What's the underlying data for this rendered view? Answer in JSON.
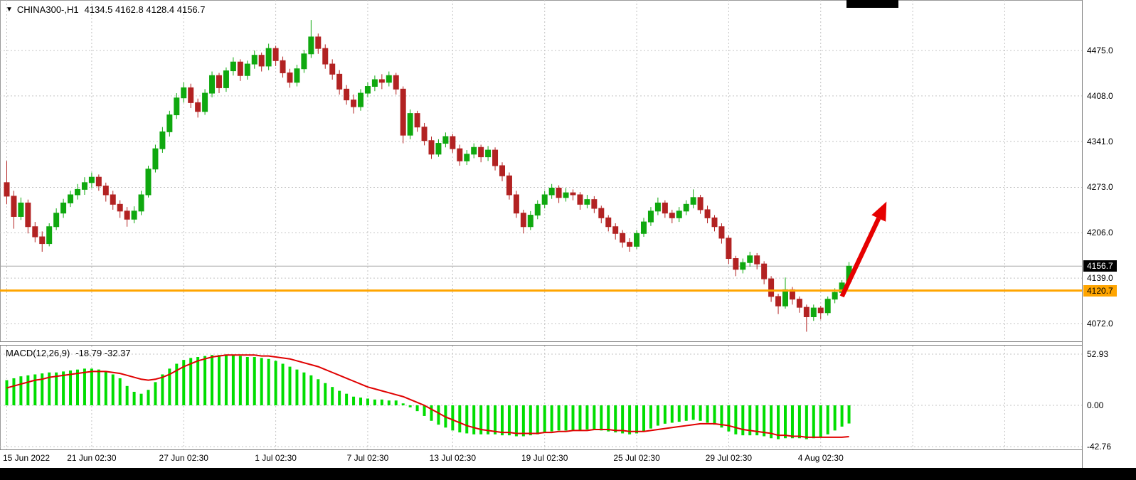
{
  "header": {
    "dropdown_icon": "▼",
    "symbol": "CHINA300-,H1",
    "ohlc": "4134.5 4162.8 4128.4 4156.7"
  },
  "macd_label": {
    "name": "MACD(12,26,9)",
    "values": "-18.79 -32.37"
  },
  "price_axis": {
    "bid_badge": "4156.7",
    "hline_badge": "4120.7"
  },
  "colors": {
    "up": "#0fa80f",
    "down": "#b22222",
    "macd_hist": "#00dd00",
    "signal": "#e00000",
    "hline": "#ffa500",
    "arrow": "#e60000",
    "grid": "#c4c4c4",
    "bid_line": "#a8a8a8",
    "badge_bid_bg": "#000000",
    "badge_hline_bg": "#ffa500"
  },
  "x_ticks": [
    {
      "i": 0,
      "label": "15 Jun 2022"
    },
    {
      "i": 12,
      "label": "21 Jun 02:30"
    },
    {
      "i": 25,
      "label": "27 Jun 02:30"
    },
    {
      "i": 38,
      "label": "1 Jul 02:30"
    },
    {
      "i": 51,
      "label": "7 Jul 02:30"
    },
    {
      "i": 63,
      "label": "13 Jul 02:30"
    },
    {
      "i": 76,
      "label": "19 Jul 02:30"
    },
    {
      "i": 89,
      "label": "25 Jul 02:30"
    },
    {
      "i": 102,
      "label": "29 Jul 02:30"
    },
    {
      "i": 115,
      "label": "4 Aug 02:30"
    }
  ],
  "chart_data": [
    {
      "type": "candlestick",
      "title": "CHINA300-,H1",
      "timeframe": "H1",
      "yticks": [
        "4475.0",
        "4408.0",
        "4341.0",
        "4273.0",
        "4206.0",
        "4139.0",
        "4072.0"
      ],
      "ylim": [
        4048,
        4541
      ],
      "bid": 4156.7,
      "hline": 4120.7,
      "last_bar": {
        "open": 4134.5,
        "high": 4162.8,
        "low": 4128.4,
        "close": 4156.7
      },
      "arrow": {
        "i1": 118,
        "p1": 4112,
        "i2": 124.3,
        "p2": 4252
      },
      "ohlc": [
        [
          4280,
          4312,
          4248,
          4260
        ],
        [
          4260,
          4268,
          4212,
          4230
        ],
        [
          4230,
          4258,
          4225,
          4250
        ],
        [
          4250,
          4255,
          4205,
          4215
        ],
        [
          4215,
          4222,
          4192,
          4200
        ],
        [
          4200,
          4208,
          4178,
          4190
        ],
        [
          4190,
          4220,
          4186,
          4215
        ],
        [
          4215,
          4242,
          4210,
          4235
        ],
        [
          4235,
          4256,
          4228,
          4250
        ],
        [
          4250,
          4268,
          4244,
          4262
        ],
        [
          4262,
          4278,
          4255,
          4270
        ],
        [
          4270,
          4288,
          4262,
          4280
        ],
        [
          4280,
          4295,
          4272,
          4288
        ],
        [
          4288,
          4292,
          4268,
          4275
        ],
        [
          4275,
          4280,
          4252,
          4262
        ],
        [
          4262,
          4268,
          4240,
          4248
        ],
        [
          4248,
          4254,
          4228,
          4238
        ],
        [
          4238,
          4244,
          4215,
          4226
        ],
        [
          4226,
          4245,
          4220,
          4238
        ],
        [
          4238,
          4268,
          4232,
          4262
        ],
        [
          4262,
          4305,
          4258,
          4300
        ],
        [
          4300,
          4336,
          4295,
          4330
        ],
        [
          4330,
          4362,
          4324,
          4355
        ],
        [
          4355,
          4386,
          4348,
          4380
        ],
        [
          4380,
          4412,
          4374,
          4405
        ],
        [
          4405,
          4428,
          4398,
          4420
        ],
        [
          4420,
          4426,
          4390,
          4398
        ],
        [
          4398,
          4404,
          4376,
          4385
        ],
        [
          4385,
          4418,
          4380,
          4412
        ],
        [
          4412,
          4444,
          4406,
          4438
        ],
        [
          4438,
          4442,
          4412,
          4420
        ],
        [
          4420,
          4450,
          4414,
          4445
        ],
        [
          4445,
          4465,
          4438,
          4458
        ],
        [
          4458,
          4462,
          4430,
          4438
        ],
        [
          4438,
          4460,
          4432,
          4455
        ],
        [
          4455,
          4475,
          4448,
          4468
        ],
        [
          4468,
          4472,
          4444,
          4452
        ],
        [
          4452,
          4485,
          4446,
          4478
        ],
        [
          4478,
          4482,
          4452,
          4460
        ],
        [
          4460,
          4466,
          4435,
          4442
        ],
        [
          4442,
          4448,
          4420,
          4428
        ],
        [
          4428,
          4454,
          4422,
          4448
        ],
        [
          4448,
          4476,
          4442,
          4470
        ],
        [
          4470,
          4520,
          4464,
          4495
        ],
        [
          4495,
          4500,
          4470,
          4478
        ],
        [
          4478,
          4484,
          4448,
          4455
        ],
        [
          4455,
          4462,
          4432,
          4440
        ],
        [
          4440,
          4446,
          4410,
          4418
        ],
        [
          4418,
          4424,
          4395,
          4402
        ],
        [
          4402,
          4410,
          4382,
          4392
        ],
        [
          4392,
          4418,
          4386,
          4412
        ],
        [
          4412,
          4428,
          4406,
          4422
        ],
        [
          4422,
          4438,
          4415,
          4432
        ],
        [
          4432,
          4440,
          4418,
          4428
        ],
        [
          4428,
          4444,
          4422,
          4438
        ],
        [
          4438,
          4442,
          4410,
          4418
        ],
        [
          4418,
          4422,
          4338,
          4350
        ],
        [
          4350,
          4388,
          4344,
          4382
        ],
        [
          4382,
          4386,
          4355,
          4362
        ],
        [
          4362,
          4368,
          4335,
          4342
        ],
        [
          4342,
          4348,
          4315,
          4322
        ],
        [
          4322,
          4344,
          4318,
          4338
        ],
        [
          4338,
          4354,
          4332,
          4348
        ],
        [
          4348,
          4352,
          4324,
          4330
        ],
        [
          4330,
          4336,
          4305,
          4312
        ],
        [
          4312,
          4328,
          4306,
          4322
        ],
        [
          4322,
          4338,
          4316,
          4332
        ],
        [
          4332,
          4336,
          4310,
          4318
        ],
        [
          4318,
          4334,
          4312,
          4328
        ],
        [
          4328,
          4332,
          4298,
          4305
        ],
        [
          4305,
          4310,
          4282,
          4290
        ],
        [
          4290,
          4295,
          4255,
          4262
        ],
        [
          4262,
          4268,
          4228,
          4235
        ],
        [
          4235,
          4240,
          4205,
          4215
        ],
        [
          4215,
          4238,
          4210,
          4232
        ],
        [
          4232,
          4254,
          4226,
          4248
        ],
        [
          4248,
          4268,
          4242,
          4262
        ],
        [
          4262,
          4278,
          4256,
          4272
        ],
        [
          4272,
          4276,
          4250,
          4258
        ],
        [
          4258,
          4272,
          4252,
          4265
        ],
        [
          4265,
          4270,
          4254,
          4262
        ],
        [
          4262,
          4266,
          4240,
          4248
        ],
        [
          4248,
          4262,
          4242,
          4255
        ],
        [
          4255,
          4260,
          4235,
          4242
        ],
        [
          4242,
          4246,
          4220,
          4228
        ],
        [
          4228,
          4232,
          4208,
          4215
        ],
        [
          4215,
          4220,
          4196,
          4205
        ],
        [
          4205,
          4210,
          4184,
          4192
        ],
        [
          4192,
          4198,
          4178,
          4186
        ],
        [
          4186,
          4210,
          4182,
          4205
        ],
        [
          4205,
          4228,
          4200,
          4222
        ],
        [
          4222,
          4244,
          4216,
          4238
        ],
        [
          4238,
          4258,
          4232,
          4250
        ],
        [
          4250,
          4254,
          4228,
          4235
        ],
        [
          4235,
          4240,
          4220,
          4228
        ],
        [
          4228,
          4244,
          4222,
          4238
        ],
        [
          4238,
          4254,
          4232,
          4248
        ],
        [
          4248,
          4270,
          4242,
          4258
        ],
        [
          4258,
          4262,
          4234,
          4240
        ],
        [
          4240,
          4246,
          4220,
          4228
        ],
        [
          4228,
          4232,
          4208,
          4215
        ],
        [
          4215,
          4220,
          4190,
          4198
        ],
        [
          4198,
          4202,
          4160,
          4168
        ],
        [
          4168,
          4172,
          4142,
          4152
        ],
        [
          4152,
          4168,
          4146,
          4162
        ],
        [
          4162,
          4178,
          4156,
          4172
        ],
        [
          4172,
          4176,
          4152,
          4160
        ],
        [
          4160,
          4164,
          4130,
          4138
        ],
        [
          4138,
          4142,
          4104,
          4112
        ],
        [
          4112,
          4116,
          4086,
          4098
        ],
        [
          4098,
          4140,
          4094,
          4122
        ],
        [
          4122,
          4126,
          4100,
          4108
        ],
        [
          4108,
          4112,
          4088,
          4096
        ],
        [
          4096,
          4100,
          4060,
          4082
        ],
        [
          4082,
          4100,
          4076,
          4095
        ],
        [
          4095,
          4098,
          4078,
          4088
        ],
        [
          4088,
          4112,
          4084,
          4108
        ],
        [
          4108,
          4124,
          4102,
          4118
        ],
        [
          4118,
          4136,
          4112,
          4132
        ],
        [
          4134.5,
          4162.8,
          4128.4,
          4156.7
        ]
      ]
    },
    {
      "type": "bar",
      "title": "MACD(12,26,9)",
      "yticks": [
        "52.93",
        "0.00",
        "-42.76"
      ],
      "last_macd": -18.79,
      "last_signal": -32.37,
      "histogram": [
        26,
        28,
        30,
        31,
        32,
        33,
        34,
        34,
        35,
        36,
        37,
        38,
        38,
        37,
        35,
        32,
        28,
        20,
        14,
        12,
        16,
        24,
        32,
        38,
        43,
        47,
        49,
        50,
        51,
        52,
        52,
        52,
        52,
        51,
        50,
        50,
        49,
        48,
        46,
        43,
        40,
        37,
        34,
        31,
        27,
        23,
        19,
        15,
        12,
        9,
        8,
        7,
        6,
        6,
        5,
        5,
        2,
        -2,
        -6,
        -11,
        -16,
        -20,
        -23,
        -26,
        -28,
        -29,
        -30,
        -30,
        -30,
        -30,
        -31,
        -31,
        -32,
        -32,
        -31,
        -30,
        -28,
        -27,
        -26,
        -26,
        -26,
        -26,
        -25,
        -25,
        -26,
        -27,
        -28,
        -29,
        -30,
        -29,
        -27,
        -24,
        -21,
        -19,
        -18,
        -17,
        -16,
        -15,
        -16,
        -18,
        -20,
        -23,
        -27,
        -30,
        -31,
        -31,
        -31,
        -32,
        -34,
        -35,
        -34,
        -34,
        -34,
        -35,
        -34,
        -33,
        -30,
        -26,
        -22,
        -18.79
      ],
      "signal": [
        18,
        20,
        22,
        24,
        26,
        27,
        29,
        30,
        31,
        32,
        33,
        34,
        35,
        35,
        35,
        34,
        33,
        31,
        29,
        27,
        26,
        27,
        29,
        32,
        36,
        40,
        43,
        46,
        48,
        50,
        51,
        52,
        52,
        52,
        52,
        52,
        51,
        51,
        50,
        49,
        48,
        46,
        44,
        42,
        40,
        37,
        34,
        31,
        28,
        25,
        22,
        19,
        17,
        15,
        13,
        11,
        9,
        6,
        3,
        0,
        -4,
        -8,
        -12,
        -15,
        -18,
        -21,
        -23,
        -25,
        -26,
        -27,
        -28,
        -28,
        -29,
        -29,
        -29,
        -29,
        -28,
        -28,
        -27,
        -27,
        -26,
        -26,
        -26,
        -25,
        -25,
        -25,
        -26,
        -26,
        -27,
        -27,
        -27,
        -26,
        -25,
        -24,
        -23,
        -22,
        -21,
        -20,
        -19,
        -19,
        -19,
        -20,
        -21,
        -23,
        -25,
        -26,
        -27,
        -28,
        -29,
        -31,
        -31,
        -32,
        -32,
        -33,
        -33,
        -33,
        -33,
        -33,
        -33,
        -32.37
      ]
    }
  ]
}
